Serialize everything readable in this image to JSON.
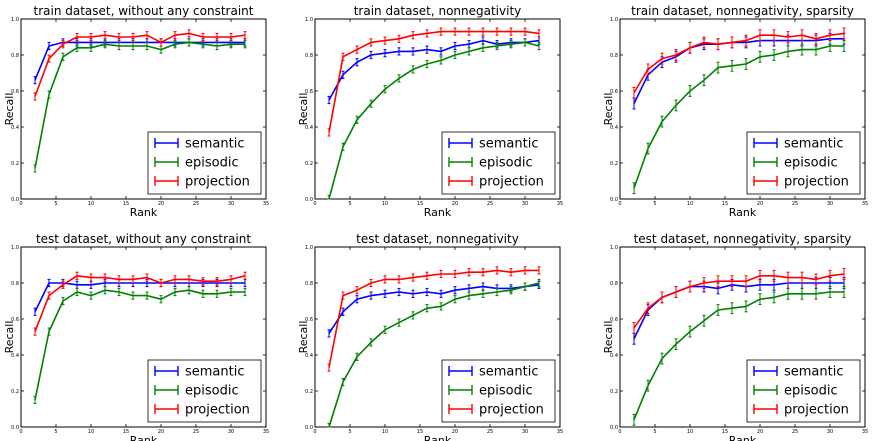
{
  "figure": {
    "legend_position": "lower right",
    "series_colors": {
      "semantic": "#0000ff",
      "episodic": "#008000",
      "projection": "#ff0000"
    }
  },
  "chart_data": [
    {
      "type": "line",
      "title": "train dataset, without any constraint",
      "xlabel": "Rank",
      "ylabel": "Recall",
      "xlim": [
        0,
        35
      ],
      "ylim": [
        0,
        1.0
      ],
      "xticks": [
        "0",
        "5",
        "10",
        "15",
        "20",
        "25",
        "30",
        "35"
      ],
      "yticks": [
        "0.0",
        "0.2",
        "0.4",
        "0.6",
        "0.8",
        "1.0"
      ],
      "grid": false,
      "x": [
        2,
        4,
        6,
        8,
        10,
        12,
        14,
        16,
        18,
        20,
        22,
        24,
        26,
        28,
        30,
        32
      ],
      "series": [
        {
          "name": "semantic",
          "color": "#0000ff",
          "values": [
            0.66,
            0.85,
            0.87,
            0.87,
            0.87,
            0.87,
            0.87,
            0.87,
            0.87,
            0.87,
            0.87,
            0.87,
            0.87,
            0.87,
            0.87,
            0.87
          ]
        },
        {
          "name": "episodic",
          "color": "#008000",
          "values": [
            0.17,
            0.58,
            0.79,
            0.84,
            0.84,
            0.86,
            0.85,
            0.85,
            0.85,
            0.83,
            0.86,
            0.87,
            0.86,
            0.85,
            0.86,
            0.86
          ]
        },
        {
          "name": "projection",
          "color": "#ff0000",
          "values": [
            0.57,
            0.78,
            0.86,
            0.9,
            0.9,
            0.91,
            0.9,
            0.9,
            0.91,
            0.87,
            0.91,
            0.92,
            0.9,
            0.9,
            0.9,
            0.91
          ]
        }
      ],
      "error": 0.02
    },
    {
      "type": "line",
      "title": "train dataset, nonnegativity",
      "xlabel": "Rank",
      "ylabel": "Recall",
      "xlim": [
        0,
        35
      ],
      "ylim": [
        0,
        1.0
      ],
      "xticks": [
        "0",
        "5",
        "10",
        "15",
        "20",
        "25",
        "30",
        "35"
      ],
      "yticks": [
        "0.0",
        "0.2",
        "0.4",
        "0.6",
        "0.8",
        "1.0"
      ],
      "grid": false,
      "x": [
        2,
        4,
        6,
        8,
        10,
        12,
        14,
        16,
        18,
        20,
        22,
        24,
        26,
        28,
        30,
        32
      ],
      "series": [
        {
          "name": "semantic",
          "color": "#0000ff",
          "values": [
            0.55,
            0.69,
            0.76,
            0.8,
            0.81,
            0.82,
            0.82,
            0.83,
            0.82,
            0.85,
            0.86,
            0.88,
            0.86,
            0.87,
            0.87,
            0.88
          ]
        },
        {
          "name": "episodic",
          "color": "#008000",
          "values": [
            0.0,
            0.29,
            0.44,
            0.53,
            0.61,
            0.67,
            0.72,
            0.75,
            0.77,
            0.8,
            0.82,
            0.84,
            0.85,
            0.86,
            0.87,
            0.85
          ]
        },
        {
          "name": "projection",
          "color": "#ff0000",
          "values": [
            0.37,
            0.79,
            0.83,
            0.87,
            0.88,
            0.89,
            0.91,
            0.92,
            0.93,
            0.93,
            0.93,
            0.93,
            0.93,
            0.93,
            0.93,
            0.92
          ]
        }
      ],
      "error": 0.02
    },
    {
      "type": "line",
      "title": "train dataset, nonnegativity, sparsity",
      "xlabel": "Rank",
      "ylabel": "Recall",
      "xlim": [
        0,
        35
      ],
      "ylim": [
        0,
        1.0
      ],
      "xticks": [
        "0",
        "5",
        "10",
        "15",
        "20",
        "25",
        "30",
        "35"
      ],
      "yticks": [
        "0.0",
        "0.2",
        "0.4",
        "0.6",
        "0.8",
        "1.0"
      ],
      "grid": false,
      "x": [
        2,
        4,
        6,
        8,
        10,
        12,
        14,
        16,
        18,
        20,
        22,
        24,
        26,
        28,
        30,
        32
      ],
      "series": [
        {
          "name": "semantic",
          "color": "#0000ff",
          "values": [
            0.53,
            0.69,
            0.76,
            0.79,
            0.84,
            0.86,
            0.86,
            0.87,
            0.87,
            0.88,
            0.88,
            0.88,
            0.88,
            0.88,
            0.89,
            0.89
          ]
        },
        {
          "name": "episodic",
          "color": "#008000",
          "values": [
            0.06,
            0.28,
            0.43,
            0.52,
            0.6,
            0.66,
            0.73,
            0.74,
            0.75,
            0.79,
            0.8,
            0.82,
            0.83,
            0.83,
            0.85,
            0.85
          ]
        },
        {
          "name": "projection",
          "color": "#ff0000",
          "values": [
            0.59,
            0.72,
            0.78,
            0.8,
            0.84,
            0.87,
            0.86,
            0.87,
            0.88,
            0.91,
            0.91,
            0.9,
            0.91,
            0.89,
            0.91,
            0.92
          ]
        }
      ],
      "error": 0.03
    },
    {
      "type": "line",
      "title": "test dataset, without any constraint",
      "xlabel": "Rank",
      "ylabel": "Recall",
      "xlim": [
        0,
        35
      ],
      "ylim": [
        0,
        1.0
      ],
      "xticks": [
        "0",
        "5",
        "10",
        "15",
        "20",
        "25",
        "30",
        "35"
      ],
      "yticks": [
        "0.0",
        "0.2",
        "0.4",
        "0.6",
        "0.8",
        "1.0"
      ],
      "grid": false,
      "x": [
        2,
        4,
        6,
        8,
        10,
        12,
        14,
        16,
        18,
        20,
        22,
        24,
        26,
        28,
        30,
        32
      ],
      "series": [
        {
          "name": "semantic",
          "color": "#0000ff",
          "values": [
            0.64,
            0.8,
            0.8,
            0.79,
            0.79,
            0.8,
            0.8,
            0.8,
            0.8,
            0.8,
            0.8,
            0.8,
            0.8,
            0.8,
            0.8,
            0.8
          ]
        },
        {
          "name": "episodic",
          "color": "#008000",
          "values": [
            0.15,
            0.53,
            0.7,
            0.75,
            0.73,
            0.76,
            0.75,
            0.73,
            0.73,
            0.71,
            0.75,
            0.76,
            0.74,
            0.74,
            0.75,
            0.75
          ]
        },
        {
          "name": "projection",
          "color": "#ff0000",
          "values": [
            0.53,
            0.73,
            0.79,
            0.84,
            0.83,
            0.83,
            0.82,
            0.82,
            0.83,
            0.8,
            0.82,
            0.82,
            0.81,
            0.81,
            0.82,
            0.84
          ]
        }
      ],
      "error": 0.02
    },
    {
      "type": "line",
      "title": "test dataset, nonnegativity",
      "xlabel": "Rank",
      "ylabel": "Recall",
      "xlim": [
        0,
        35
      ],
      "ylim": [
        0,
        1.0
      ],
      "xticks": [
        "0",
        "5",
        "10",
        "15",
        "20",
        "25",
        "30",
        "35"
      ],
      "yticks": [
        "0.0",
        "0.2",
        "0.4",
        "0.6",
        "0.8",
        "1.0"
      ],
      "grid": false,
      "x": [
        2,
        4,
        6,
        8,
        10,
        12,
        14,
        16,
        18,
        20,
        22,
        24,
        26,
        28,
        30,
        32
      ],
      "series": [
        {
          "name": "semantic",
          "color": "#0000ff",
          "values": [
            0.52,
            0.64,
            0.71,
            0.73,
            0.74,
            0.75,
            0.74,
            0.75,
            0.74,
            0.76,
            0.77,
            0.78,
            0.77,
            0.77,
            0.78,
            0.79
          ]
        },
        {
          "name": "episodic",
          "color": "#008000",
          "values": [
            0.0,
            0.25,
            0.39,
            0.47,
            0.54,
            0.58,
            0.62,
            0.66,
            0.67,
            0.71,
            0.73,
            0.74,
            0.75,
            0.76,
            0.78,
            0.8
          ]
        },
        {
          "name": "projection",
          "color": "#ff0000",
          "values": [
            0.33,
            0.73,
            0.76,
            0.8,
            0.82,
            0.82,
            0.83,
            0.84,
            0.85,
            0.85,
            0.86,
            0.86,
            0.87,
            0.86,
            0.87,
            0.87
          ]
        }
      ],
      "error": 0.02
    },
    {
      "type": "line",
      "title": "test dataset, nonnegativity, sparsity",
      "xlabel": "Rank",
      "ylabel": "Recall",
      "xlim": [
        0,
        35
      ],
      "ylim": [
        0,
        1.0
      ],
      "xticks": [
        "0",
        "5",
        "10",
        "15",
        "20",
        "25",
        "30",
        "35"
      ],
      "yticks": [
        "0.0",
        "0.2",
        "0.4",
        "0.6",
        "0.8",
        "1.0"
      ],
      "grid": false,
      "x": [
        2,
        4,
        6,
        8,
        10,
        12,
        14,
        16,
        18,
        20,
        22,
        24,
        26,
        28,
        30,
        32
      ],
      "series": [
        {
          "name": "semantic",
          "color": "#0000ff",
          "values": [
            0.49,
            0.65,
            0.72,
            0.75,
            0.78,
            0.78,
            0.77,
            0.79,
            0.78,
            0.79,
            0.79,
            0.8,
            0.8,
            0.8,
            0.8,
            0.8
          ]
        },
        {
          "name": "episodic",
          "color": "#008000",
          "values": [
            0.04,
            0.23,
            0.38,
            0.46,
            0.53,
            0.59,
            0.65,
            0.66,
            0.67,
            0.71,
            0.72,
            0.74,
            0.74,
            0.74,
            0.75,
            0.75
          ]
        },
        {
          "name": "projection",
          "color": "#ff0000",
          "values": [
            0.55,
            0.66,
            0.72,
            0.75,
            0.78,
            0.8,
            0.81,
            0.81,
            0.81,
            0.84,
            0.84,
            0.83,
            0.83,
            0.82,
            0.84,
            0.85
          ]
        }
      ],
      "error": 0.03
    }
  ]
}
